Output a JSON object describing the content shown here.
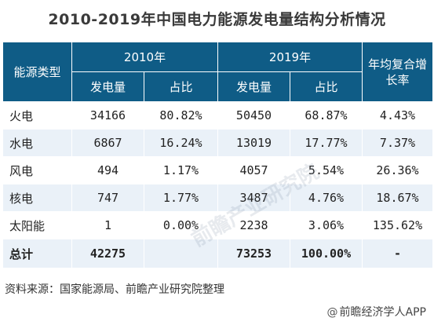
{
  "title": "2010-2019年中国电力能源发电量结构分析情况",
  "chart_data": {
    "type": "table",
    "columns": {
      "category": "能源类型",
      "year1": "2010年",
      "year2": "2019年",
      "cagr": "年均复合增长率",
      "output": "发电量",
      "share": "占比"
    },
    "rows": [
      {
        "name": "火电",
        "gen2010": "34166",
        "share2010": "80.82%",
        "gen2019": "50450",
        "share2019": "68.87%",
        "cagr": "4.43%"
      },
      {
        "name": "水电",
        "gen2010": "6867",
        "share2010": "16.24%",
        "gen2019": "13019",
        "share2019": "17.77%",
        "cagr": "7.37%"
      },
      {
        "name": "风电",
        "gen2010": "494",
        "share2010": "1.17%",
        "gen2019": "4057",
        "share2019": "5.54%",
        "cagr": "26.36%"
      },
      {
        "name": "核电",
        "gen2010": "747",
        "share2010": "1.77%",
        "gen2019": "3487",
        "share2019": "4.76%",
        "cagr": "18.67%"
      },
      {
        "name": "太阳能",
        "gen2010": "1",
        "share2010": "0.00%",
        "gen2019": "2238",
        "share2019": "3.06%",
        "cagr": "135.62%"
      }
    ],
    "total": {
      "name": "总计",
      "gen2010": "42275",
      "share2010": "",
      "gen2019": "73253",
      "share2019": "100.00%",
      "cagr": "-"
    }
  },
  "watermark": "前瞻产业研究院",
  "source": "资料来源：国家能源局、前瞻产业研究院整理",
  "brand": {
    "at": "@",
    "name": "前瞻经济学人APP"
  },
  "colors": {
    "header": "#0f5c86",
    "stripe": "#eaf1f8"
  }
}
